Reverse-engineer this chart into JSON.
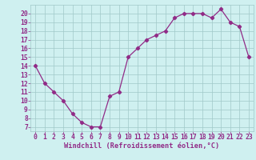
{
  "x": [
    0,
    1,
    2,
    3,
    4,
    5,
    6,
    7,
    8,
    9,
    10,
    11,
    12,
    13,
    14,
    15,
    16,
    17,
    18,
    19,
    20,
    21,
    22,
    23
  ],
  "y": [
    14,
    12,
    11,
    10,
    8.5,
    7.5,
    7,
    7,
    10.5,
    11,
    15,
    16,
    17,
    17.5,
    18,
    19.5,
    20,
    20,
    20,
    19.5,
    20.5,
    19,
    18.5,
    15
  ],
  "line_color": "#912b87",
  "marker": "D",
  "marker_size": 2.2,
  "bg_color": "#cff0f0",
  "grid_color": "#a0c8c8",
  "xlabel": "Windchill (Refroidissement éolien,°C)",
  "xlabel_color": "#912b87",
  "xlabel_fontsize": 6.2,
  "tick_label_color": "#912b87",
  "tick_fontsize": 5.8,
  "ylim": [
    6.5,
    21.0
  ],
  "xlim": [
    -0.5,
    23.5
  ],
  "yticks": [
    7,
    8,
    9,
    10,
    11,
    12,
    13,
    14,
    15,
    16,
    17,
    18,
    19,
    20
  ],
  "xticks": [
    0,
    1,
    2,
    3,
    4,
    5,
    6,
    7,
    8,
    9,
    10,
    11,
    12,
    13,
    14,
    15,
    16,
    17,
    18,
    19,
    20,
    21,
    22,
    23
  ]
}
